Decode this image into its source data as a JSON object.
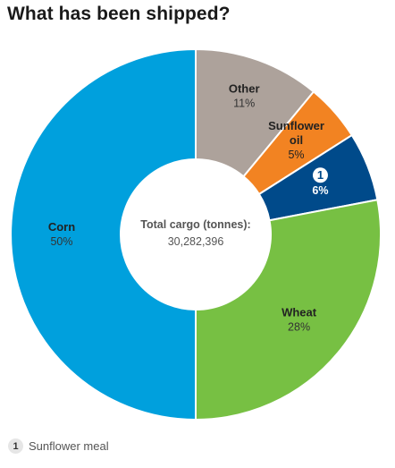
{
  "chart_data": {
    "type": "pie",
    "title": "What has been shipped?",
    "center_label": "Total cargo (tonnes):",
    "center_value": "30,282,396",
    "slices": [
      {
        "label": "Other",
        "value": 11,
        "pct_label": "11%",
        "color": "#ada29b"
      },
      {
        "label": "Sunflower oil",
        "value": 5,
        "pct_label": "5%",
        "color": "#f28322"
      },
      {
        "label": "1",
        "value": 6,
        "pct_label": "6%",
        "color": "#004a8a"
      },
      {
        "label": "Wheat",
        "value": 28,
        "pct_label": "28%",
        "color": "#77c043"
      },
      {
        "label": "Corn",
        "value": 50,
        "pct_label": "50%",
        "color": "#00a0dd"
      }
    ],
    "footnote": {
      "number": "1",
      "text": "Sunflower meal"
    }
  }
}
